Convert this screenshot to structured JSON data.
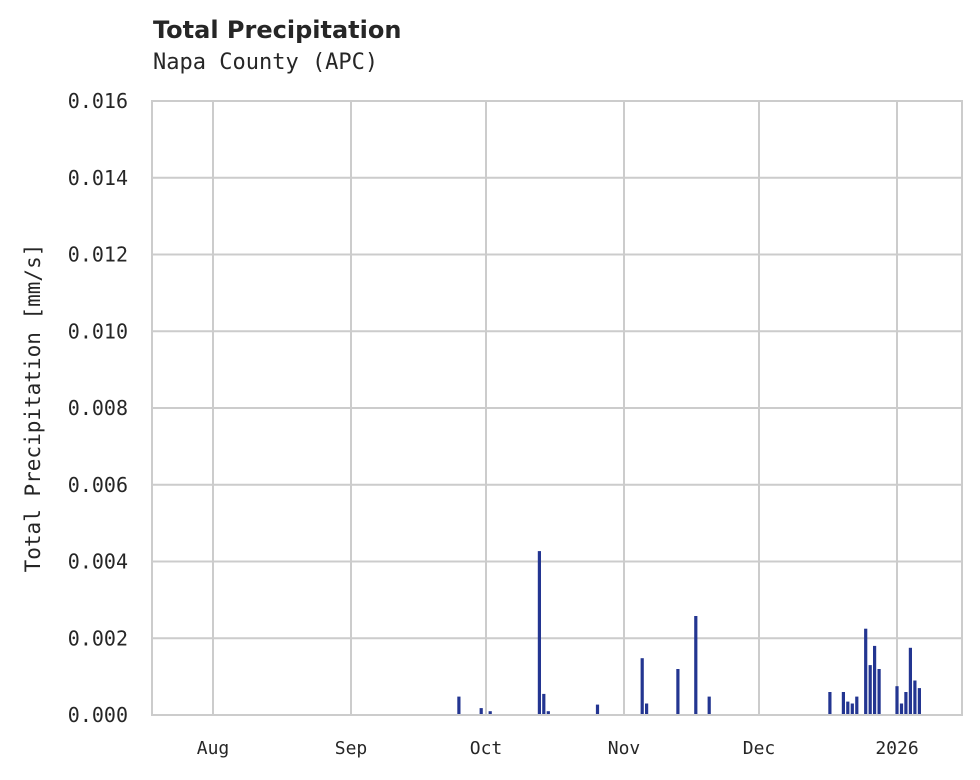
{
  "header": {
    "title": "Total Precipitation",
    "subtitle": "Napa County (APC)"
  },
  "axes": {
    "ylabel": "Total Precipitation [mm/s]",
    "yticks": [
      "0.000",
      "0.002",
      "0.004",
      "0.006",
      "0.008",
      "0.010",
      "0.012",
      "0.014",
      "0.016"
    ],
    "xticks": [
      "Aug",
      "Sep",
      "Oct",
      "Nov",
      "Dec",
      "2026"
    ]
  },
  "colors": {
    "series": "#233591",
    "grid": "#cccccc",
    "text": "#262626"
  },
  "chart_data": {
    "type": "area",
    "title": "Total Precipitation",
    "subtitle": "Napa County (APC)",
    "xlabel": "",
    "ylabel": "Total Precipitation [mm/s]",
    "ylim": [
      0,
      0.016
    ],
    "xlim": [
      "2025-07-18",
      "2026-01-15"
    ],
    "grid": true,
    "legend": null,
    "x_tick_labels": [
      "Aug",
      "Sep",
      "Oct",
      "Nov",
      "Dec",
      "2026"
    ],
    "y_tick_labels": [
      "0.000",
      "0.002",
      "0.004",
      "0.006",
      "0.008",
      "0.010",
      "0.012",
      "0.014",
      "0.016"
    ],
    "series": [
      {
        "name": "Total Precipitation",
        "color": "#233591",
        "points": [
          {
            "date": "2025-09-25",
            "value": 0.00048
          },
          {
            "date": "2025-09-30",
            "value": 0.00018
          },
          {
            "date": "2025-10-02",
            "value": 0.0001
          },
          {
            "date": "2025-10-13",
            "value": 0.00427
          },
          {
            "date": "2025-10-14",
            "value": 0.00055
          },
          {
            "date": "2025-10-15",
            "value": 0.0001
          },
          {
            "date": "2025-10-26",
            "value": 0.00027
          },
          {
            "date": "2025-11-05",
            "value": 0.00148
          },
          {
            "date": "2025-11-06",
            "value": 0.0003
          },
          {
            "date": "2025-11-13",
            "value": 0.0012
          },
          {
            "date": "2025-11-17",
            "value": 0.00258
          },
          {
            "date": "2025-11-20",
            "value": 0.00048
          },
          {
            "date": "2025-12-17",
            "value": 0.0006
          },
          {
            "date": "2025-12-20",
            "value": 0.0006
          },
          {
            "date": "2025-12-21",
            "value": 0.00035
          },
          {
            "date": "2025-12-22",
            "value": 0.0003
          },
          {
            "date": "2025-12-23",
            "value": 0.00048
          },
          {
            "date": "2025-12-25",
            "value": 0.00225
          },
          {
            "date": "2025-12-26",
            "value": 0.0013
          },
          {
            "date": "2025-12-27",
            "value": 0.0018
          },
          {
            "date": "2025-12-28",
            "value": 0.0012
          },
          {
            "date": "2026-01-01",
            "value": 0.00075
          },
          {
            "date": "2026-01-02",
            "value": 0.0003
          },
          {
            "date": "2026-01-03",
            "value": 0.0006
          },
          {
            "date": "2026-01-04",
            "value": 0.00175
          },
          {
            "date": "2026-01-05",
            "value": 0.0009
          },
          {
            "date": "2026-01-06",
            "value": 0.0007
          }
        ]
      }
    ]
  }
}
